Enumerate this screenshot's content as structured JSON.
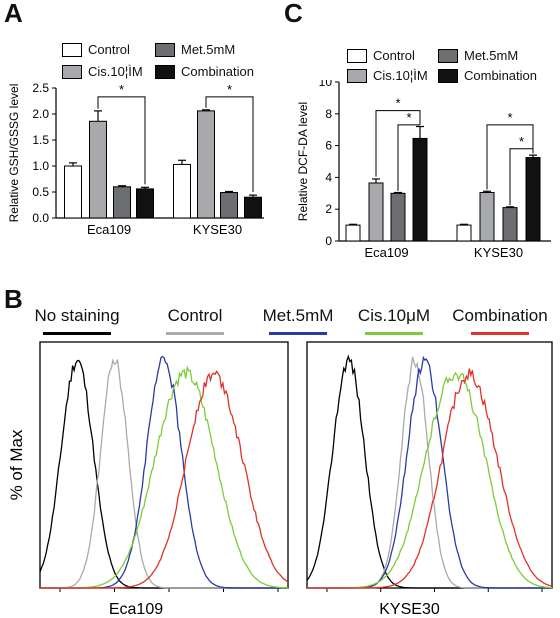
{
  "panels": {
    "a": "A",
    "b": "B",
    "c": "C"
  },
  "legend_ac": [
    {
      "label": "Control",
      "color": "#ffffff"
    },
    {
      "label": "Cis.10¦ÌM",
      "color": "#a7a9ac"
    },
    {
      "label": "Met.5mM",
      "color": "#6d6e71"
    },
    {
      "label": "Combination",
      "color": "#111111"
    }
  ],
  "legend_b": [
    {
      "label": "No staining",
      "color": "#000000"
    },
    {
      "label": "Control",
      "color": "#aaaaaa"
    },
    {
      "label": "Met.5mM",
      "color": "#2b3aa8"
    },
    {
      "label": "Cis.10μM",
      "color": "#7ccc3a"
    },
    {
      "label": "Combination",
      "color": "#e0312b"
    }
  ],
  "chart_data": [
    {
      "type": "bar",
      "panel": "A",
      "ylabel": "Relative GSH/GSSG level",
      "ylim": [
        0,
        2.5
      ],
      "yticks": [
        "0.0",
        "0.5",
        "1.0",
        "1.5",
        "2.0",
        "2.5"
      ],
      "categories": [
        "Eca109",
        "KYSE30"
      ],
      "series": [
        {
          "name": "Control",
          "values": [
            1.0,
            1.03
          ],
          "errors": [
            0.06,
            0.08
          ]
        },
        {
          "name": "Cis.10¦ÌM",
          "values": [
            1.86,
            2.06
          ],
          "errors": [
            0.2,
            0.02
          ]
        },
        {
          "name": "Met.5mM",
          "values": [
            0.6,
            0.49
          ],
          "errors": [
            0.02,
            0.02
          ]
        },
        {
          "name": "Combination",
          "values": [
            0.56,
            0.4
          ],
          "errors": [
            0.03,
            0.04
          ]
        }
      ],
      "significance": [
        {
          "label": "*"
        },
        {
          "label": "*"
        }
      ]
    },
    {
      "type": "bar",
      "panel": "C",
      "ylabel": "Relative DCF-DA level",
      "ylim": [
        0,
        10
      ],
      "yticks": [
        "0",
        "2",
        "4",
        "6",
        "8",
        "10"
      ],
      "categories": [
        "Eca109",
        "KYSE30"
      ],
      "series": [
        {
          "name": "Control",
          "values": [
            1.0,
            1.0
          ],
          "errors": [
            0.05,
            0.05
          ]
        },
        {
          "name": "Cis.10¦ÌM",
          "values": [
            3.65,
            3.05
          ],
          "errors": [
            0.25,
            0.08
          ]
        },
        {
          "name": "Met.5mM",
          "values": [
            3.0,
            2.1
          ],
          "errors": [
            0.05,
            0.05
          ]
        },
        {
          "name": "Combination",
          "values": [
            6.45,
            5.25
          ],
          "errors": [
            0.75,
            0.15
          ]
        }
      ],
      "significance": [
        {
          "label": "*"
        },
        {
          "label": "*"
        },
        {
          "label": "*"
        },
        {
          "label": "*"
        }
      ]
    },
    {
      "type": "line",
      "panel": "B",
      "ylabel": "% of Max",
      "subplots": [
        {
          "xlabel": "Eca109",
          "series": [
            {
              "name": "No staining",
              "peak": 0.15
            },
            {
              "name": "Control",
              "peak": 0.3
            },
            {
              "name": "Met.5mM",
              "peak": 0.5
            },
            {
              "name": "Cis.10μM",
              "peak": 0.56
            },
            {
              "name": "Combination",
              "peak": 0.68
            }
          ]
        },
        {
          "xlabel": "KYSE30",
          "series": [
            {
              "name": "No staining",
              "peak": 0.17
            },
            {
              "name": "Control",
              "peak": 0.44
            },
            {
              "name": "Met.5mM",
              "peak": 0.48
            },
            {
              "name": "Cis.10μM",
              "peak": 0.58
            },
            {
              "name": "Combination",
              "peak": 0.64
            }
          ]
        }
      ]
    }
  ]
}
